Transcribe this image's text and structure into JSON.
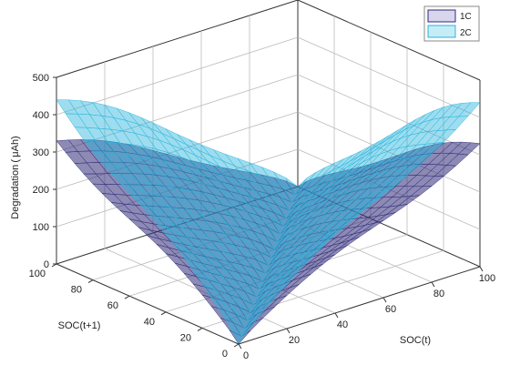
{
  "chart_data": {
    "type": "surface3d",
    "zlabel": "Degradation ( μAh)",
    "xlabel": "SOC(t)",
    "ylabel": "SOC(t+1)",
    "xlim": [
      0,
      100
    ],
    "ylim": [
      0,
      100
    ],
    "zlim": [
      0,
      500
    ],
    "x_ticks": [
      "0",
      "20",
      "40",
      "60",
      "80",
      "100"
    ],
    "y_ticks": [
      "0",
      "20",
      "40",
      "60",
      "80",
      "100"
    ],
    "z_ticks": [
      "0",
      "100",
      "200",
      "300",
      "400",
      "500"
    ],
    "grid": true,
    "legend_position": "top-right",
    "series": [
      {
        "name": "1C",
        "color": "#2f2a78",
        "corner_values": {
          "soc_t_0__soc_t1_0": 0,
          "soc_t_100__soc_t1_100": 0,
          "soc_t_0__soc_t1_100": 330,
          "soc_t_100__soc_t1_0": 330
        },
        "peak_value": 330
      },
      {
        "name": "2C",
        "color": "#28b4dc",
        "corner_values": {
          "soc_t_0__soc_t1_0": 0,
          "soc_t_100__soc_t1_100": 0,
          "soc_t_0__soc_t1_100": 420,
          "soc_t_100__soc_t1_0": 420
        },
        "peak_value": 440
      }
    ]
  }
}
